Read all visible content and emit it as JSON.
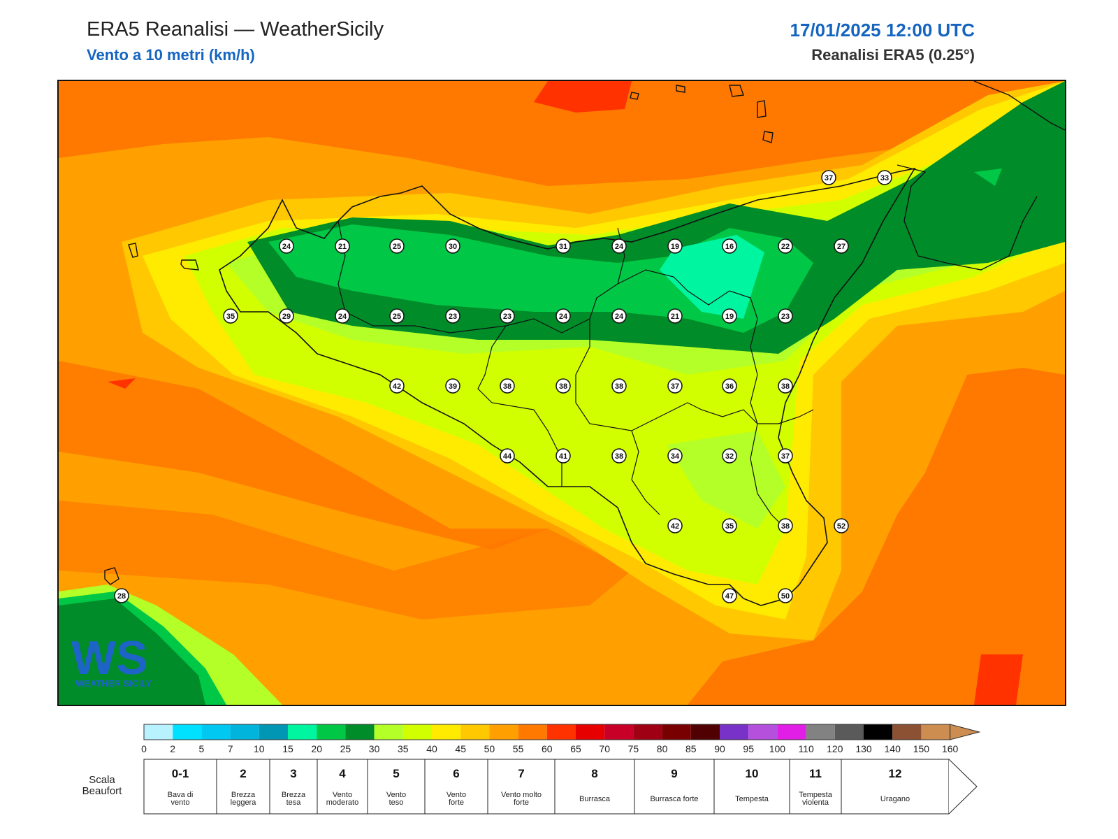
{
  "header": {
    "title": "ERA5 Reanalisi — WeatherSicily",
    "subtitle": "Vento a 10 metri (km/h)",
    "datetime": "17/01/2025 12:00 UTC",
    "source": "Reanalisi ERA5 (0.25°)"
  },
  "logo": {
    "text": "WS",
    "caption": "WEATHER SICILY"
  },
  "stations": [
    {
      "v": "37"
    },
    {
      "v": "33"
    },
    {
      "v": "24"
    },
    {
      "v": "21"
    },
    {
      "v": "25"
    },
    {
      "v": "30"
    },
    {
      "v": "31"
    },
    {
      "v": "24"
    },
    {
      "v": "19"
    },
    {
      "v": "16"
    },
    {
      "v": "22"
    },
    {
      "v": "27"
    },
    {
      "v": "35"
    },
    {
      "v": "29"
    },
    {
      "v": "24"
    },
    {
      "v": "25"
    },
    {
      "v": "23"
    },
    {
      "v": "23"
    },
    {
      "v": "24"
    },
    {
      "v": "24"
    },
    {
      "v": "21"
    },
    {
      "v": "19"
    },
    {
      "v": "23"
    },
    {
      "v": "42"
    },
    {
      "v": "39"
    },
    {
      "v": "38"
    },
    {
      "v": "38"
    },
    {
      "v": "38"
    },
    {
      "v": "37"
    },
    {
      "v": "36"
    },
    {
      "v": "38"
    },
    {
      "v": "44"
    },
    {
      "v": "41"
    },
    {
      "v": "38"
    },
    {
      "v": "34"
    },
    {
      "v": "32"
    },
    {
      "v": "37"
    },
    {
      "v": "42"
    },
    {
      "v": "35"
    },
    {
      "v": "38"
    },
    {
      "v": "52"
    },
    {
      "v": "28"
    },
    {
      "v": "47"
    },
    {
      "v": "50"
    }
  ],
  "colorbar": {
    "ticks": [
      "0",
      "2",
      "5",
      "7",
      "10",
      "15",
      "20",
      "25",
      "30",
      "35",
      "40",
      "45",
      "50",
      "55",
      "60",
      "65",
      "70",
      "75",
      "80",
      "85",
      "90",
      "95",
      "100",
      "110",
      "120",
      "130",
      "140",
      "150",
      "160"
    ],
    "colors": [
      "#b8f2ff",
      "#00e1ff",
      "#00c8f0",
      "#00b4dc",
      "#0096b4",
      "#00f5a0",
      "#00c846",
      "#008c28",
      "#b4ff28",
      "#d2ff00",
      "#ffeb00",
      "#ffc800",
      "#ffa000",
      "#ff7800",
      "#ff3200",
      "#e60000",
      "#c80028",
      "#a00014",
      "#780000",
      "#500000",
      "#7832c8",
      "#b450dc",
      "#e11ee6",
      "#828282",
      "#5a5a5a",
      "#000000",
      "#8c5032",
      "#cd8c50"
    ]
  },
  "beaufort": {
    "label": "Scala Beaufort",
    "classes": [
      {
        "n": "0-1",
        "d": "Bava di vento"
      },
      {
        "n": "2",
        "d": "Brezza leggera"
      },
      {
        "n": "3",
        "d": "Brezza tesa"
      },
      {
        "n": "4",
        "d": "Vento moderato"
      },
      {
        "n": "5",
        "d": "Vento teso"
      },
      {
        "n": "6",
        "d": "Vento forte"
      },
      {
        "n": "7",
        "d": "Vento molto forte"
      },
      {
        "n": "8",
        "d": "Burrasca"
      },
      {
        "n": "9",
        "d": "Burrasca forte"
      },
      {
        "n": "10",
        "d": "Tempesta"
      },
      {
        "n": "11",
        "d": "Tempesta violenta"
      },
      {
        "n": "12",
        "d": "Uragano"
      }
    ]
  }
}
